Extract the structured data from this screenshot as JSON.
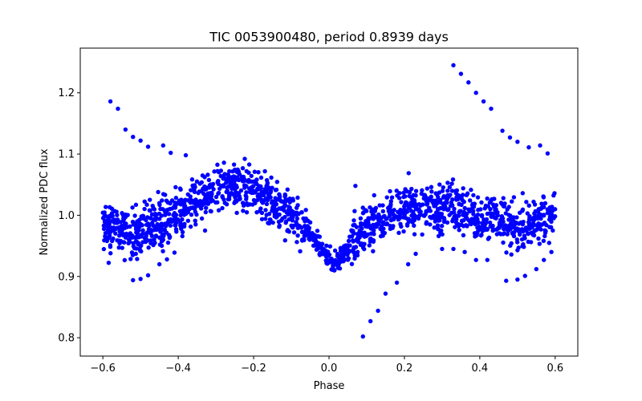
{
  "chart_data": {
    "type": "scatter",
    "title": "TIC 0053900480, period 0.8939 days",
    "xlabel": "Phase",
    "ylabel": "Normalized PDC flux",
    "xlim": [
      -0.66,
      0.66
    ],
    "ylim": [
      0.77,
      1.273
    ],
    "xticks": [
      -0.6,
      -0.4,
      -0.2,
      0.0,
      0.2,
      0.4,
      0.6
    ],
    "xtick_labels": [
      "−0.6",
      "−0.4",
      "−0.2",
      "0.0",
      "0.2",
      "0.4",
      "0.6"
    ],
    "yticks": [
      0.8,
      0.9,
      1.0,
      1.1,
      1.2
    ],
    "ytick_labels": [
      "0.8",
      "0.9",
      "1.0",
      "1.1",
      "1.2"
    ],
    "grid": false,
    "marker_color": "#0000ff",
    "series": [
      {
        "trend": [
          [
            -0.6,
            0.985
          ],
          [
            -0.56,
            0.975
          ],
          [
            -0.52,
            0.968
          ],
          [
            -0.48,
            0.972
          ],
          [
            -0.44,
            0.985
          ],
          [
            -0.4,
            1.002
          ],
          [
            -0.36,
            1.02
          ],
          [
            -0.32,
            1.035
          ],
          [
            -0.28,
            1.045
          ],
          [
            -0.24,
            1.047
          ],
          [
            -0.2,
            1.04
          ],
          [
            -0.16,
            1.025
          ],
          [
            -0.12,
            1.005
          ],
          [
            -0.08,
            0.985
          ],
          [
            -0.04,
            0.962
          ],
          [
            -0.01,
            0.935
          ],
          [
            0.01,
            0.92
          ],
          [
            0.03,
            0.93
          ],
          [
            0.06,
            0.955
          ],
          [
            0.1,
            0.978
          ],
          [
            0.14,
            0.995
          ],
          [
            0.18,
            1.008
          ],
          [
            0.22,
            1.015
          ],
          [
            0.26,
            1.017
          ],
          [
            0.3,
            1.015
          ],
          [
            0.34,
            1.01
          ],
          [
            0.38,
            1.002
          ],
          [
            0.42,
            0.995
          ],
          [
            0.46,
            0.988
          ],
          [
            0.5,
            0.982
          ],
          [
            0.54,
            0.985
          ],
          [
            0.58,
            0.995
          ],
          [
            0.6,
            1.0
          ]
        ],
        "scatter_amplitude": 0.035,
        "points_estimated": 1650
      },
      {
        "points": [
          [
            -0.58,
            1.186
          ],
          [
            -0.56,
            1.174
          ],
          [
            -0.54,
            1.14
          ],
          [
            -0.52,
            1.128
          ],
          [
            -0.5,
            1.122
          ],
          [
            -0.48,
            1.112
          ],
          [
            -0.44,
            1.114
          ],
          [
            -0.42,
            1.102
          ],
          [
            -0.38,
            1.098
          ],
          [
            -0.52,
            0.894
          ],
          [
            -0.5,
            0.896
          ],
          [
            -0.48,
            0.902
          ],
          [
            -0.45,
            0.92
          ],
          [
            -0.43,
            0.928
          ],
          [
            -0.41,
            0.939
          ],
          [
            0.07,
            1.048
          ],
          [
            0.09,
            0.802
          ],
          [
            0.11,
            0.827
          ],
          [
            0.13,
            0.844
          ],
          [
            0.15,
            0.872
          ],
          [
            0.18,
            0.89
          ],
          [
            0.21,
            0.92
          ],
          [
            0.23,
            0.937
          ],
          [
            0.33,
            1.245
          ],
          [
            0.35,
            1.231
          ],
          [
            0.37,
            1.217
          ],
          [
            0.39,
            1.2
          ],
          [
            0.41,
            1.186
          ],
          [
            0.43,
            1.174
          ],
          [
            0.46,
            1.138
          ],
          [
            0.48,
            1.127
          ],
          [
            0.5,
            1.12
          ],
          [
            0.53,
            1.111
          ],
          [
            0.56,
            1.114
          ],
          [
            0.58,
            1.101
          ],
          [
            0.3,
            0.945
          ],
          [
            0.33,
            0.945
          ],
          [
            0.36,
            0.94
          ],
          [
            0.39,
            0.927
          ],
          [
            0.42,
            0.927
          ],
          [
            0.47,
            0.893
          ],
          [
            0.5,
            0.895
          ],
          [
            0.52,
            0.901
          ],
          [
            0.55,
            0.912
          ],
          [
            0.57,
            0.927
          ],
          [
            0.59,
            0.94
          ]
        ]
      }
    ]
  }
}
